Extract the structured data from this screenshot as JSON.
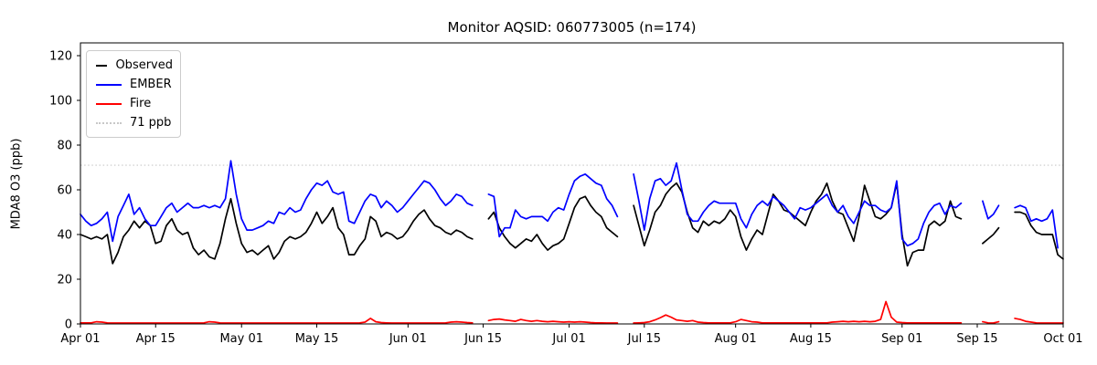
{
  "figure": {
    "title": "Monitor AQSID: 060773005 (n=174)",
    "ylabel": "MDA8 O3 (ppb)",
    "background_color": "#ffffff",
    "axes_color": "#000000"
  },
  "legend": {
    "items": [
      {
        "label": "Observed",
        "color": "#000000",
        "style": "solid"
      },
      {
        "label": "EMBER",
        "color": "#0000ff",
        "style": "solid"
      },
      {
        "label": "Fire",
        "color": "#ff0000",
        "style": "solid"
      },
      {
        "label": "71 ppb",
        "color": "#c8c8c8",
        "style": "dotted"
      }
    ]
  },
  "chart_data": {
    "type": "line",
    "title": "Monitor AQSID: 060773005 (n=174)",
    "xlabel": "",
    "ylabel": "MDA8 O3 (ppb)",
    "ylim": [
      0,
      126
    ],
    "yticks": [
      0,
      20,
      40,
      60,
      80,
      100,
      120
    ],
    "grid": false,
    "legend_position": "upper left",
    "x_axis": "days from Apr 01, one point per day; null = missing day",
    "n_days": 184,
    "xticks": [
      {
        "label": "Apr 01",
        "day": 0
      },
      {
        "label": "Apr 15",
        "day": 14
      },
      {
        "label": "May 01",
        "day": 30
      },
      {
        "label": "May 15",
        "day": 44
      },
      {
        "label": "Jun 01",
        "day": 61
      },
      {
        "label": "Jun 15",
        "day": 75
      },
      {
        "label": "Jul 01",
        "day": 91
      },
      {
        "label": "Jul 15",
        "day": 105
      },
      {
        "label": "Aug 01",
        "day": 122
      },
      {
        "label": "Aug 15",
        "day": 136
      },
      {
        "label": "Sep 01",
        "day": 153
      },
      {
        "label": "Sep 15",
        "day": 167
      },
      {
        "label": "Oct 01",
        "day": 183
      }
    ],
    "threshold": {
      "value": 71,
      "label": "71 ppb",
      "color": "#c8c8c8",
      "style": "dotted"
    },
    "series": [
      {
        "name": "Observed",
        "color": "#000000",
        "values": [
          40,
          39,
          38,
          39,
          38,
          40,
          27,
          32,
          39,
          42,
          46,
          43,
          46,
          44,
          36,
          37,
          44,
          47,
          42,
          40,
          41,
          34,
          31,
          33,
          30,
          29,
          36,
          47,
          56,
          45,
          36,
          32,
          33,
          31,
          33,
          35,
          29,
          32,
          37,
          39,
          38,
          39,
          41,
          45,
          50,
          45,
          48,
          52,
          43,
          40,
          31,
          31,
          35,
          38,
          48,
          46,
          39,
          41,
          40,
          38,
          39,
          42,
          46,
          49,
          51,
          47,
          44,
          43,
          41,
          40,
          42,
          41,
          39,
          38,
          null,
          null,
          47,
          50,
          43,
          39,
          36,
          34,
          36,
          38,
          37,
          40,
          36,
          33,
          35,
          36,
          38,
          45,
          52,
          56,
          57,
          53,
          50,
          48,
          43,
          41,
          39,
          null,
          null,
          53,
          44,
          35,
          42,
          50,
          53,
          58,
          61,
          63,
          59,
          50,
          43,
          41,
          46,
          44,
          46,
          45,
          47,
          51,
          48,
          39,
          33,
          38,
          42,
          40,
          49,
          58,
          55,
          51,
          50,
          48,
          46,
          44,
          50,
          55,
          58,
          63,
          55,
          50,
          49,
          43,
          37,
          48,
          62,
          55,
          48,
          47,
          49,
          52,
          63,
          40,
          26,
          32,
          33,
          33,
          44,
          46,
          44,
          46,
          55,
          48,
          47,
          null,
          null,
          null,
          36,
          38,
          40,
          43,
          null,
          null,
          50,
          50,
          49,
          44,
          41,
          40,
          40,
          40,
          31,
          29
        ]
      },
      {
        "name": "EMBER",
        "color": "#0000ff",
        "values": [
          49,
          46,
          44,
          45,
          47,
          50,
          37,
          48,
          53,
          58,
          49,
          52,
          47,
          44,
          44,
          48,
          52,
          54,
          50,
          52,
          54,
          52,
          52,
          53,
          52,
          53,
          52,
          56,
          73,
          58,
          47,
          42,
          42,
          43,
          44,
          46,
          45,
          50,
          49,
          52,
          50,
          51,
          56,
          60,
          63,
          62,
          64,
          59,
          58,
          59,
          46,
          45,
          50,
          55,
          58,
          57,
          52,
          55,
          53,
          50,
          52,
          55,
          58,
          61,
          64,
          63,
          60,
          56,
          53,
          55,
          58,
          57,
          54,
          53,
          null,
          null,
          58,
          57,
          39,
          43,
          43,
          51,
          48,
          47,
          48,
          48,
          48,
          46,
          50,
          52,
          51,
          58,
          64,
          66,
          67,
          65,
          63,
          62,
          56,
          53,
          48,
          null,
          null,
          67,
          55,
          42,
          56,
          64,
          65,
          62,
          64,
          72,
          60,
          49,
          46,
          46,
          50,
          53,
          55,
          54,
          54,
          54,
          54,
          47,
          43,
          49,
          53,
          55,
          53,
          57,
          55,
          53,
          50,
          47,
          52,
          51,
          52,
          54,
          56,
          58,
          53,
          50,
          53,
          48,
          45,
          50,
          55,
          53,
          53,
          51,
          50,
          52,
          64,
          38,
          35,
          36,
          38,
          45,
          50,
          53,
          54,
          49,
          53,
          52,
          54,
          null,
          null,
          null,
          55,
          47,
          49,
          53,
          null,
          null,
          52,
          53,
          52,
          46,
          47,
          46,
          47,
          51,
          34,
          null
        ]
      },
      {
        "name": "Fire",
        "color": "#ff0000",
        "values": [
          0.5,
          0.5,
          0.5,
          1,
          0.8,
          0.5,
          0.4,
          0.4,
          0.4,
          0.4,
          0.4,
          0.4,
          0.4,
          0.4,
          0.4,
          0.4,
          0.4,
          0.4,
          0.4,
          0.4,
          0.4,
          0.4,
          0.4,
          0.5,
          1,
          0.8,
          0.5,
          0.4,
          0.4,
          0.4,
          0.4,
          0.4,
          0.4,
          0.4,
          0.4,
          0.4,
          0.4,
          0.4,
          0.4,
          0.4,
          0.4,
          0.4,
          0.4,
          0.4,
          0.4,
          0.4,
          0.4,
          0.4,
          0.4,
          0.4,
          0.4,
          0.4,
          0.5,
          0.8,
          2.5,
          1,
          0.6,
          0.5,
          0.4,
          0.4,
          0.4,
          0.4,
          0.4,
          0.4,
          0.4,
          0.4,
          0.4,
          0.4,
          0.5,
          0.8,
          1,
          0.8,
          0.6,
          0.5,
          null,
          null,
          1.5,
          2,
          2.2,
          1.8,
          1.5,
          1.2,
          2,
          1.5,
          1.2,
          1.5,
          1.2,
          1,
          1.2,
          1,
          0.8,
          1,
          0.8,
          1,
          0.8,
          0.6,
          0.5,
          0.5,
          0.4,
          0.4,
          0.4,
          null,
          null,
          0.4,
          0.5,
          0.6,
          1,
          1.8,
          2.8,
          4,
          3,
          1.8,
          1.5,
          1.2,
          1.5,
          0.8,
          0.6,
          0.5,
          0.5,
          0.5,
          0.5,
          0.5,
          1,
          2,
          1.5,
          1,
          0.8,
          0.5,
          0.5,
          0.5,
          0.5,
          0.5,
          0.5,
          0.5,
          0.5,
          0.5,
          0.5,
          0.5,
          0.5,
          0.5,
          0.8,
          1,
          1.2,
          1,
          1.2,
          1,
          1.2,
          1,
          1.2,
          2,
          10,
          3,
          0.8,
          0.6,
          0.5,
          0.5,
          0.5,
          0.5,
          0.5,
          0.5,
          0.5,
          0.5,
          0.5,
          0.5,
          0.5,
          null,
          null,
          null,
          1,
          0.5,
          0.4,
          1,
          null,
          null,
          2.5,
          2,
          1.2,
          0.8,
          0.5,
          0.4,
          0.4,
          0.4,
          0.4,
          0.4
        ]
      }
    ]
  }
}
